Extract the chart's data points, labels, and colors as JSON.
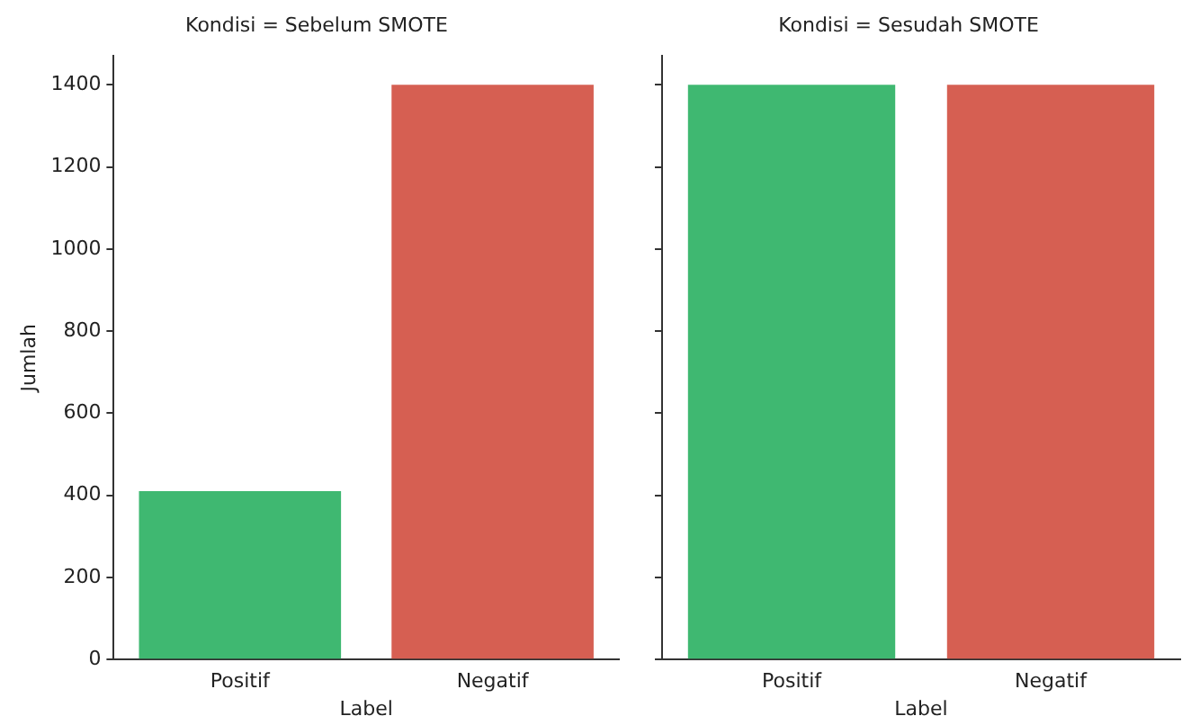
{
  "chart_data": [
    {
      "type": "bar",
      "title": "Kondisi = Sebelum SMOTE",
      "xlabel": "Label",
      "ylabel": "Jumlah",
      "categories": [
        "Positif",
        "Negatif"
      ],
      "values": [
        410,
        1400
      ],
      "colors": [
        "#3fb871",
        "#d65f52"
      ],
      "ylim": [
        0,
        1470
      ],
      "yticks": [
        0,
        200,
        400,
        600,
        800,
        1000,
        1200,
        1400
      ],
      "grid": false
    },
    {
      "type": "bar",
      "title": "Kondisi = Sesudah SMOTE",
      "xlabel": "Label",
      "categories": [
        "Positif",
        "Negatif"
      ],
      "values": [
        1400,
        1400
      ],
      "colors": [
        "#3fb871",
        "#d65f52"
      ],
      "ylim": [
        0,
        1470
      ],
      "yticks": [
        0,
        200,
        400,
        600,
        800,
        1000,
        1200,
        1400
      ],
      "grid": false,
      "tick_labels": "x"
    }
  ]
}
